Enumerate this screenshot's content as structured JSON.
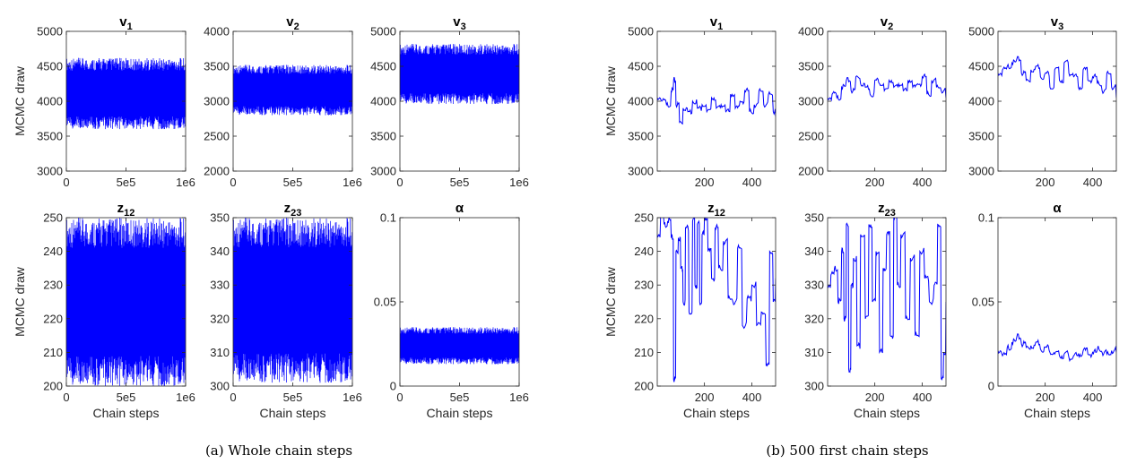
{
  "figure": {
    "captions": [
      "(a) Whole chain steps",
      "(b) 500 first chain steps"
    ]
  },
  "chart_data": [
    {
      "type": "line",
      "group": "a",
      "panels": [
        {
          "title": "v",
          "subscript": "1",
          "ylabel": "MCMC draw",
          "xlabel": "",
          "ylim": [
            3000,
            5000
          ],
          "yticks": [
            "3000",
            "3500",
            "4000",
            "4500",
            "5000"
          ],
          "xlim": [
            0,
            1000000
          ],
          "xticks": [
            "0",
            "5e5",
            "1e6"
          ],
          "series": [
            {
              "values": [
                {
                  "step": 0,
                  "low": 3700,
                  "high": 4400
                },
                {
                  "step": 1000000,
                  "low": 3650,
                  "high": 4450
                }
              ],
              "range_observed": [
                3600,
                4620
              ]
            }
          ]
        },
        {
          "title": "v",
          "subscript": "2",
          "ylabel": "",
          "xlabel": "",
          "ylim": [
            2000,
            4000
          ],
          "yticks": [
            "2000",
            "2500",
            "3000",
            "3500",
            "4000"
          ],
          "xlim": [
            0,
            1000000
          ],
          "xticks": [
            "0",
            "5e5",
            "1e6"
          ],
          "series": [
            {
              "range_observed": [
                2800,
                3520
              ]
            }
          ]
        },
        {
          "title": "v",
          "subscript": "3",
          "ylabel": "",
          "xlabel": "",
          "ylim": [
            3000,
            5000
          ],
          "yticks": [
            "3000",
            "3500",
            "4000",
            "4500",
            "5000"
          ],
          "xlim": [
            0,
            1000000
          ],
          "xticks": [
            "0",
            "5e5",
            "1e6"
          ],
          "series": [
            {
              "range_observed": [
                3960,
                4820
              ]
            }
          ]
        },
        {
          "title": "z",
          "subscript": "12",
          "ylabel": "MCMC draw",
          "xlabel": "Chain steps",
          "ylim": [
            200,
            250
          ],
          "yticks": [
            "200",
            "210",
            "220",
            "230",
            "240",
            "250"
          ],
          "xlim": [
            0,
            1000000
          ],
          "xticks": [
            "0",
            "5e5",
            "1e6"
          ],
          "series": [
            {
              "range_observed": [
                200,
                250
              ]
            }
          ]
        },
        {
          "title": "z",
          "subscript": "23",
          "ylabel": "",
          "xlabel": "Chain steps",
          "ylim": [
            300,
            350
          ],
          "yticks": [
            "300",
            "310",
            "320",
            "330",
            "340",
            "350"
          ],
          "xlim": [
            0,
            1000000
          ],
          "xticks": [
            "0",
            "5e5",
            "1e6"
          ],
          "series": [
            {
              "range_observed": [
                301,
                350
              ]
            }
          ]
        },
        {
          "title": "α",
          "subscript": "",
          "ylabel": "",
          "xlabel": "Chain steps",
          "ylim": [
            0,
            0.1
          ],
          "yticks": [
            "0",
            "0.05",
            "0.1"
          ],
          "xlim": [
            0,
            1000000
          ],
          "xticks": [
            "0",
            "5e5",
            "1e6"
          ],
          "series": [
            {
              "range_observed": [
                0.013,
                0.035
              ]
            }
          ]
        }
      ]
    },
    {
      "type": "line",
      "group": "b",
      "panels": [
        {
          "title": "v",
          "subscript": "1",
          "ylabel": "MCMC draw",
          "xlabel": "",
          "ylim": [
            3000,
            5000
          ],
          "yticks": [
            "3000",
            "3500",
            "4000",
            "4500",
            "5000"
          ],
          "xlim": [
            1,
            500
          ],
          "xticks": [
            "200",
            "400"
          ],
          "series": [
            {
              "x": [
                1,
                20,
                40,
                60,
                70,
                80,
                95,
                110,
                130,
                150,
                170,
                190,
                210,
                230,
                250,
                270,
                290,
                310,
                330,
                350,
                370,
                390,
                410,
                430,
                450,
                470,
                490,
                500
              ],
              "y": [
                4050,
                4000,
                3950,
                4150,
                4300,
                3950,
                3700,
                3900,
                3850,
                4000,
                3900,
                3950,
                3850,
                4050,
                3900,
                3950,
                3850,
                4100,
                3900,
                4000,
                4150,
                3850,
                3950,
                4150,
                3950,
                4100,
                3850,
                3780
              ]
            }
          ]
        },
        {
          "title": "v",
          "subscript": "2",
          "ylabel": "",
          "xlabel": "",
          "ylim": [
            2000,
            4000
          ],
          "yticks": [
            "2000",
            "2500",
            "3000",
            "3500",
            "4000"
          ],
          "xlim": [
            1,
            500
          ],
          "xticks": [
            "200",
            "400"
          ],
          "series": [
            {
              "x": [
                1,
                20,
                40,
                60,
                80,
                100,
                120,
                140,
                160,
                180,
                200,
                220,
                240,
                260,
                280,
                300,
                320,
                340,
                360,
                380,
                400,
                420,
                440,
                460,
                480,
                500
              ],
              "y": [
                3050,
                3100,
                3050,
                3200,
                3300,
                3150,
                3350,
                3250,
                3200,
                3100,
                3300,
                3250,
                3150,
                3300,
                3200,
                3250,
                3150,
                3300,
                3200,
                3250,
                3350,
                3100,
                3300,
                3200,
                3150,
                3050
              ]
            }
          ]
        },
        {
          "title": "v",
          "subscript": "3",
          "ylabel": "",
          "xlabel": "",
          "ylim": [
            3000,
            5000
          ],
          "yticks": [
            "3000",
            "3500",
            "4000",
            "4500",
            "5000"
          ],
          "xlim": [
            1,
            500
          ],
          "xticks": [
            "200",
            "400"
          ],
          "series": [
            {
              "x": [
                1,
                20,
                40,
                60,
                80,
                100,
                120,
                140,
                160,
                180,
                200,
                220,
                240,
                260,
                280,
                300,
                320,
                340,
                360,
                380,
                400,
                420,
                440,
                460,
                480,
                500
              ],
              "y": [
                4400,
                4450,
                4500,
                4550,
                4600,
                4400,
                4300,
                4450,
                4500,
                4350,
                4400,
                4200,
                4450,
                4300,
                4550,
                4400,
                4350,
                4200,
                4450,
                4300,
                4350,
                4250,
                4150,
                4400,
                4200,
                4050
              ]
            }
          ]
        },
        {
          "title": "z",
          "subscript": "12",
          "ylabel": "MCMC draw",
          "xlabel": "Chain steps",
          "ylim": [
            200,
            250
          ],
          "yticks": [
            "200",
            "210",
            "220",
            "230",
            "240",
            "250"
          ],
          "xlim": [
            1,
            500
          ],
          "xticks": [
            "200",
            "400"
          ],
          "series": [
            {
              "x": [
                1,
                15,
                30,
                45,
                60,
                70,
                80,
                90,
                100,
                110,
                120,
                135,
                150,
                160,
                170,
                180,
                190,
                200,
                215,
                230,
                245,
                260,
                280,
                300,
                320,
                340,
                360,
                380,
                400,
                420,
                440,
                460,
                475,
                490,
                500
              ],
              "y": [
                245,
                250,
                248,
                249,
                244,
                202,
                240,
                244,
                235,
                225,
                247,
                222,
                249,
                230,
                248,
                225,
                245,
                250,
                240,
                232,
                247,
                235,
                243,
                226,
                225,
                241,
                218,
                226,
                230,
                218,
                222,
                206,
                240,
                225,
                232
              ]
            }
          ]
        },
        {
          "title": "z",
          "subscript": "23",
          "ylabel": "",
          "xlabel": "Chain steps",
          "ylim": [
            300,
            350
          ],
          "yticks": [
            "300",
            "310",
            "320",
            "330",
            "340",
            "350"
          ],
          "xlim": [
            1,
            500
          ],
          "xticks": [
            "200",
            "400"
          ],
          "series": [
            {
              "x": [
                1,
                15,
                30,
                45,
                60,
                70,
                80,
                90,
                100,
                110,
                125,
                140,
                160,
                175,
                190,
                205,
                220,
                235,
                250,
                265,
                280,
                295,
                310,
                330,
                350,
                370,
                390,
                410,
                430,
                450,
                465,
                480,
                490,
                500
              ],
              "y": [
                330,
                333,
                335,
                325,
                340,
                320,
                348,
                305,
                330,
                338,
                312,
                345,
                320,
                348,
                325,
                340,
                310,
                335,
                345,
                315,
                350,
                330,
                345,
                320,
                338,
                315,
                340,
                332,
                325,
                330,
                348,
                302,
                310,
                325
              ]
            }
          ]
        },
        {
          "title": "α",
          "subscript": "",
          "ylabel": "",
          "xlabel": "Chain steps",
          "ylim": [
            0,
            0.1
          ],
          "yticks": [
            "0",
            "0.05",
            "0.1"
          ],
          "xlim": [
            1,
            500
          ],
          "xticks": [
            "200",
            "400"
          ],
          "series": [
            {
              "x": [
                1,
                20,
                40,
                60,
                80,
                100,
                120,
                140,
                160,
                180,
                200,
                220,
                240,
                260,
                280,
                300,
                320,
                340,
                360,
                380,
                400,
                420,
                440,
                460,
                480,
                500
              ],
              "y": [
                0.021,
                0.018,
                0.023,
                0.026,
                0.029,
                0.025,
                0.023,
                0.024,
                0.026,
                0.022,
                0.023,
                0.02,
                0.019,
                0.018,
                0.019,
                0.017,
                0.018,
                0.019,
                0.021,
                0.019,
                0.02,
                0.022,
                0.02,
                0.019,
                0.021,
                0.02
              ]
            }
          ]
        }
      ]
    }
  ]
}
